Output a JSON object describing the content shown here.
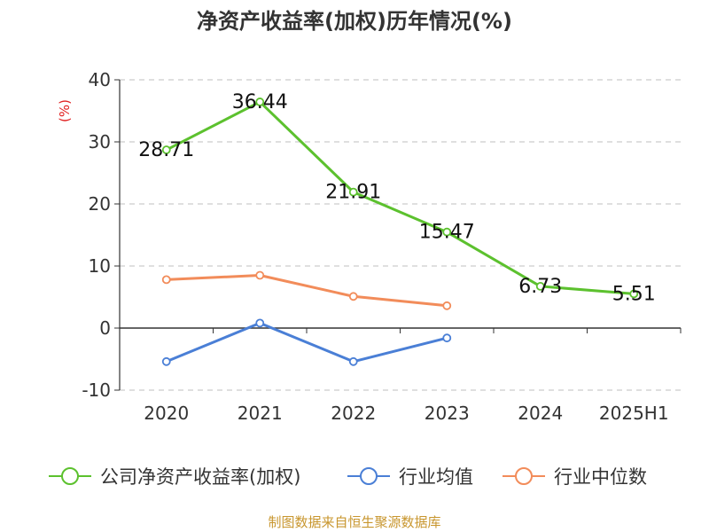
{
  "title": "净资产收益率(加权)历年情况(%)",
  "source": "制图数据来自恒生聚源数据库",
  "chart_data": {
    "type": "line",
    "ylabel": "(%)",
    "categories": [
      "2020",
      "2021",
      "2022",
      "2023",
      "2024",
      "2025H1"
    ],
    "ylim": [
      -10,
      40
    ],
    "yticks": [
      40,
      30,
      20,
      10,
      0,
      -10
    ],
    "grid": true,
    "legend_position": "bottom",
    "series": [
      {
        "name": "公司净资产收益率(加权)",
        "color": "#5cc12e",
        "values": [
          28.71,
          36.44,
          21.91,
          15.47,
          6.73,
          5.51
        ],
        "labels": [
          "28.71",
          "36.44",
          "21.91",
          "15.47",
          "6.73",
          "5.51"
        ]
      },
      {
        "name": "行业均值",
        "color": "#4a7fd6",
        "values": [
          -5.4,
          0.8,
          -5.4,
          -1.6,
          null,
          null
        ]
      },
      {
        "name": "行业中位数",
        "color": "#f28c5a",
        "values": [
          7.8,
          8.5,
          5.1,
          3.6,
          null,
          null
        ]
      }
    ]
  }
}
